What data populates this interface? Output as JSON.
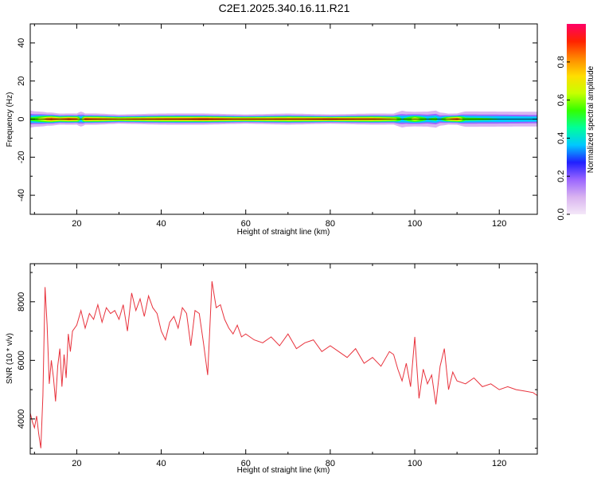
{
  "figure": {
    "title": "C2E1.2025.340.16.11.R21"
  },
  "chart_data": [
    {
      "type": "heatmap",
      "xlabel": "Height of straight line (km)",
      "ylabel": "Frequency (Hz)",
      "xlim": [
        9,
        129
      ],
      "ylim": [
        -50,
        50
      ],
      "xticks": [
        20,
        40,
        60,
        80,
        100,
        120
      ],
      "xtick_labels": [
        "20",
        "40",
        "60",
        "80",
        "100",
        "120"
      ],
      "yticks": [
        -40,
        -20,
        0,
        20,
        40
      ],
      "ytick_labels": [
        "-40",
        "-20",
        "0",
        "20",
        "40"
      ],
      "band": {
        "center_hz": 0,
        "x": [
          9,
          10,
          12,
          13,
          14,
          16,
          18,
          20,
          21,
          22,
          25,
          30,
          40,
          50,
          60,
          70,
          80,
          90,
          95,
          97,
          98,
          100,
          103,
          105,
          106,
          108,
          110,
          112,
          120,
          129
        ],
        "core_amplitude": [
          0.55,
          0.6,
          0.75,
          0.9,
          0.95,
          0.85,
          0.95,
          0.9,
          0.5,
          0.95,
          0.9,
          0.85,
          0.9,
          0.95,
          0.9,
          0.9,
          0.95,
          0.9,
          0.8,
          0.5,
          0.55,
          0.75,
          0.5,
          0.55,
          0.45,
          0.8,
          0.95,
          0.55,
          0.5,
          0.45
        ],
        "halo_width_hz": [
          5,
          4.5,
          4,
          3.5,
          3.5,
          3,
          3,
          3,
          4.5,
          3,
          3,
          2.5,
          3,
          3,
          2.5,
          3,
          2.5,
          3,
          3,
          5,
          4.5,
          4,
          4.5,
          5,
          4,
          3,
          3,
          4.5,
          4.5,
          4.5
        ]
      },
      "colorbar": {
        "label": "Normalized spectral amplitude",
        "range": [
          0,
          1
        ],
        "ticks": [
          0.0,
          0.2,
          0.4,
          0.6,
          0.8
        ],
        "tick_labels": [
          "0.0",
          "0.2",
          "0.4",
          "0.6",
          "0.8"
        ],
        "colormap": [
          "#f4e8f8",
          "#d9b3f0",
          "#9b66ff",
          "#2020ff",
          "#00c8ff",
          "#00ff9a",
          "#33ff00",
          "#c8ff00",
          "#ffdd00",
          "#ff8800",
          "#ff2200",
          "#ff0066"
        ]
      }
    },
    {
      "type": "line",
      "xlabel": "Height of straight line (km)",
      "ylabel": "SNR (10 * v/v)",
      "xlim": [
        9,
        129
      ],
      "ylim": [
        2800,
        9300
      ],
      "xticks": [
        20,
        40,
        60,
        80,
        100,
        120
      ],
      "xtick_labels": [
        "20",
        "40",
        "60",
        "80",
        "100",
        "120"
      ],
      "yticks": [
        4000,
        6000,
        8000
      ],
      "ytick_labels": [
        "4000",
        "6000",
        "8000"
      ],
      "color": "#e8323c",
      "x": [
        9.0,
        9.5,
        10.0,
        10.5,
        11.0,
        11.5,
        12.0,
        12.5,
        13.0,
        13.5,
        14.0,
        14.5,
        15.0,
        15.5,
        16.0,
        16.5,
        17.0,
        17.5,
        18.0,
        18.5,
        19.0,
        20.0,
        21.0,
        22.0,
        23.0,
        24.0,
        25.0,
        26.0,
        27.0,
        28.0,
        29.0,
        30.0,
        31.0,
        32.0,
        33.0,
        34.0,
        35.0,
        36.0,
        37.0,
        38.0,
        39.0,
        40.0,
        41.0,
        42.0,
        43.0,
        44.0,
        45.0,
        46.0,
        47.0,
        48.0,
        49.0,
        50.0,
        51.0,
        52.0,
        53.0,
        54.0,
        55.0,
        56.0,
        57.0,
        58.0,
        59.0,
        60.0,
        62.0,
        64.0,
        66.0,
        68.0,
        70.0,
        72.0,
        74.0,
        76.0,
        78.0,
        80.0,
        82.0,
        84.0,
        86.0,
        88.0,
        90.0,
        92.0,
        94.0,
        95.0,
        96.0,
        97.0,
        98.0,
        99.0,
        100.0,
        101.0,
        102.0,
        103.0,
        104.0,
        105.0,
        106.0,
        107.0,
        108.0,
        109.0,
        110.0,
        112.0,
        114.0,
        116.0,
        118.0,
        120.0,
        122.0,
        124.0,
        126.0,
        128.0,
        129.0
      ],
      "values": [
        4200,
        3900,
        3700,
        4100,
        3500,
        3000,
        4800,
        8500,
        7200,
        5200,
        6000,
        5400,
        4600,
        5800,
        6400,
        5100,
        6200,
        5400,
        6900,
        6300,
        7000,
        7200,
        7700,
        7100,
        7600,
        7400,
        7900,
        7300,
        7800,
        7600,
        7700,
        7400,
        7900,
        7000,
        8300,
        7700,
        8100,
        7500,
        8200,
        7800,
        7600,
        7000,
        6700,
        7300,
        7500,
        7100,
        7800,
        7600,
        6500,
        7700,
        7600,
        6600,
        5500,
        8700,
        7800,
        7900,
        7400,
        7100,
        6900,
        7200,
        6800,
        6900,
        6700,
        6600,
        6800,
        6500,
        6900,
        6400,
        6600,
        6700,
        6300,
        6500,
        6300,
        6100,
        6400,
        5900,
        6100,
        5800,
        6300,
        6200,
        5700,
        5300,
        5900,
        5100,
        6800,
        4700,
        5700,
        5200,
        5500,
        4500,
        5800,
        6400,
        5000,
        5600,
        5300,
        5200,
        5400,
        5100,
        5200,
        5000,
        5100,
        5000,
        4950,
        4900,
        4800
      ]
    }
  ]
}
